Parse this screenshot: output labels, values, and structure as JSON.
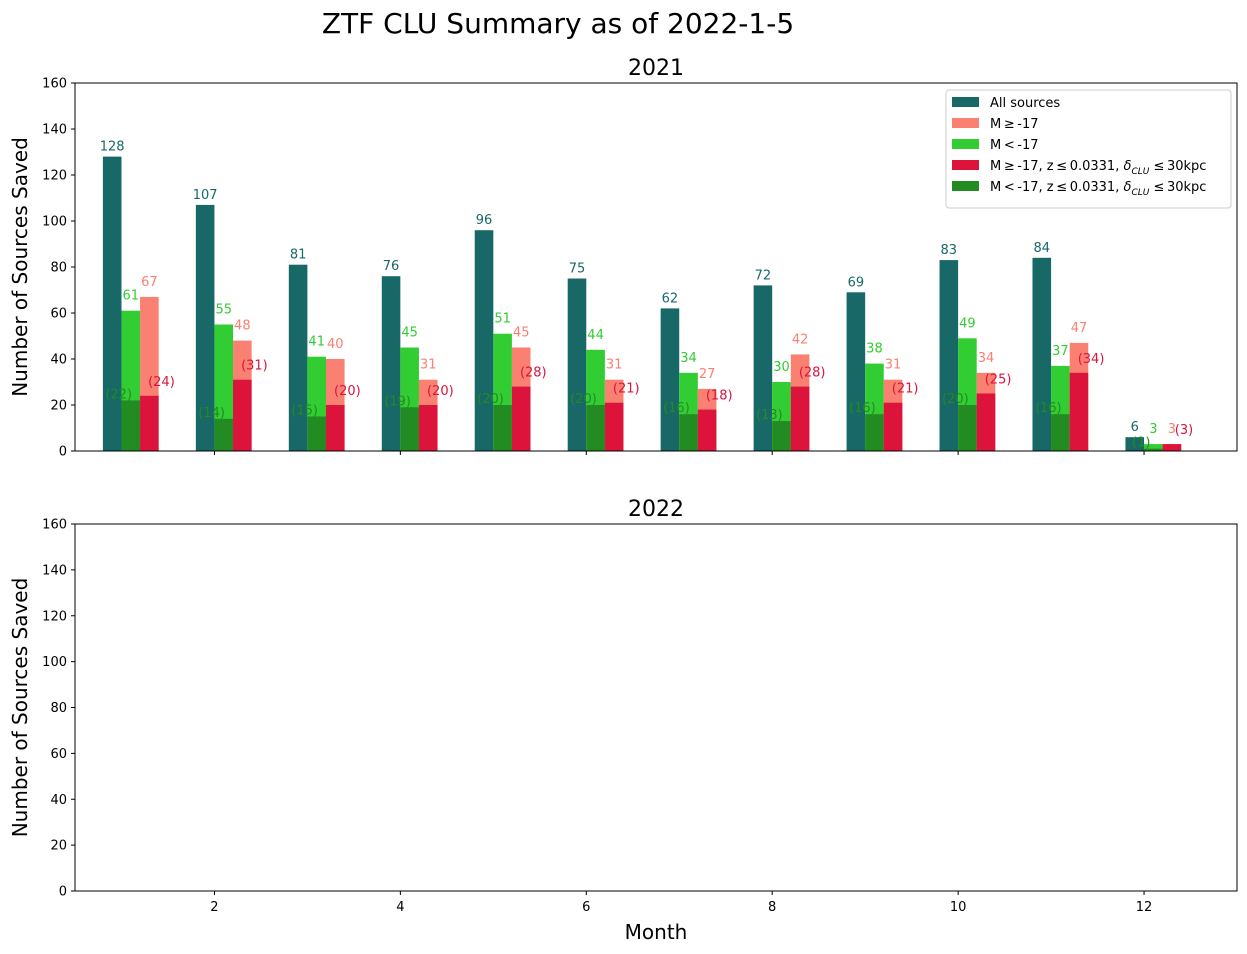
{
  "figure": {
    "suptitle": "ZTF CLU Summary as of 2022-1-5"
  },
  "chart_data": [
    {
      "type": "bar",
      "title": "2021",
      "xlabel": "",
      "ylabel": "Number of Sources Saved",
      "xlim": [
        0.5,
        13.0
      ],
      "ylim": [
        0,
        160
      ],
      "yticks": [
        0,
        20,
        40,
        60,
        80,
        100,
        120,
        140,
        160
      ],
      "xticks": [
        2,
        4,
        6,
        8,
        10,
        12
      ],
      "show_xticklabels": false,
      "legend_position": "top-right",
      "categories": [
        1,
        2,
        3,
        4,
        5,
        6,
        7,
        8,
        9,
        10,
        11,
        12
      ],
      "series": [
        {
          "name": "All sources",
          "color": "#186868",
          "label_format": "plain",
          "values": [
            128,
            107,
            81,
            76,
            96,
            75,
            62,
            72,
            69,
            83,
            84,
            6
          ]
        },
        {
          "name": "M ≥ -17",
          "color": "#fa8072",
          "label_format": "plain",
          "values": [
            67,
            48,
            40,
            31,
            45,
            31,
            27,
            42,
            31,
            34,
            47,
            3
          ]
        },
        {
          "name": "M < -17",
          "color": "#32cd32",
          "label_format": "plain",
          "values": [
            61,
            55,
            41,
            45,
            51,
            44,
            34,
            30,
            38,
            49,
            37,
            3
          ]
        },
        {
          "name": "M ≥ -17, z ≤ 0.0331, δCLU ≤ 30kpc",
          "color": "#dc143c",
          "label_format": "paren",
          "values": [
            24,
            31,
            20,
            20,
            28,
            21,
            18,
            28,
            21,
            25,
            34,
            3
          ]
        },
        {
          "name": "M < -17, z ≤ 0.0331, δCLU ≤ 30kpc",
          "color": "#228b22",
          "label_format": "paren",
          "values": [
            22,
            14,
            15,
            19,
            20,
            20,
            16,
            13,
            16,
            20,
            16,
            1
          ]
        }
      ]
    },
    {
      "type": "bar",
      "title": "2022",
      "xlabel": "Month",
      "ylabel": "Number of Sources Saved",
      "xlim": [
        0.5,
        13.0
      ],
      "ylim": [
        0,
        160
      ],
      "yticks": [
        0,
        20,
        40,
        60,
        80,
        100,
        120,
        140,
        160
      ],
      "xticks": [
        2,
        4,
        6,
        8,
        10,
        12
      ],
      "show_xticklabels": true,
      "categories": [],
      "series": []
    }
  ]
}
